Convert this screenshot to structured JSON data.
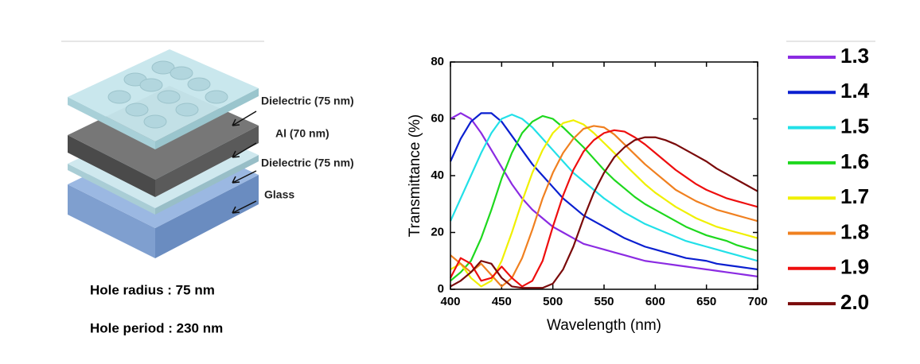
{
  "diagram": {
    "labels": [
      "Dielectric (75 nm)",
      "Al (70 nm)",
      "Dielectric (75 nm)",
      "Glass"
    ],
    "notes": [
      "Hole radius : 75 nm",
      "Hole period : 230 nm"
    ]
  },
  "chart_data": {
    "type": "line",
    "x_label": "Wavelength (nm)",
    "y_label": "Transmittance (%)",
    "xlim": [
      400,
      700
    ],
    "xticks": [
      400,
      450,
      500,
      550,
      600,
      650,
      700
    ],
    "ylim": [
      0,
      80
    ],
    "yticks": [
      0,
      20,
      40,
      60,
      80
    ],
    "x": [
      400,
      410,
      420,
      430,
      440,
      450,
      460,
      470,
      480,
      490,
      500,
      510,
      520,
      530,
      540,
      550,
      560,
      570,
      580,
      590,
      600,
      610,
      620,
      630,
      640,
      650,
      660,
      670,
      680,
      690,
      700
    ],
    "series": [
      {
        "name": "1.3",
        "color": "#8b2be2",
        "values": [
          60,
          62,
          60,
          55,
          49,
          43,
          37,
          32,
          28,
          25,
          22,
          20,
          18,
          16,
          15,
          14,
          13,
          12,
          11,
          10,
          9.5,
          9,
          8.5,
          8,
          7.5,
          7,
          6.5,
          6,
          5.5,
          5,
          4.5
        ]
      },
      {
        "name": "1.4",
        "color": "#0a1fd0",
        "values": [
          45,
          53,
          59,
          62,
          62,
          59,
          54,
          49,
          44,
          40,
          36,
          32,
          29,
          26,
          24,
          22,
          20,
          18,
          16.5,
          15,
          14,
          13,
          12,
          11,
          10.5,
          10,
          9,
          8.5,
          8,
          7.5,
          7
        ]
      },
      {
        "name": "1.5",
        "color": "#22e0e8",
        "values": [
          24,
          32,
          40,
          48,
          55,
          60,
          61.5,
          60,
          57,
          53,
          49,
          45,
          41,
          38,
          35,
          32,
          29.5,
          27,
          25,
          23,
          21.5,
          20,
          18.5,
          17,
          16,
          15,
          14,
          13,
          12,
          11,
          10
        ]
      },
      {
        "name": "1.6",
        "color": "#1ed81e",
        "values": [
          3,
          6,
          10,
          18,
          28,
          39,
          48,
          55,
          59,
          61,
          60,
          57,
          53.5,
          50,
          46,
          42,
          38.5,
          35.5,
          32.5,
          30,
          28,
          26,
          24,
          22,
          20.5,
          19,
          18,
          17,
          15.5,
          14.5,
          13.5
        ]
      },
      {
        "name": "1.7",
        "color": "#f0f000",
        "values": [
          7,
          9,
          4,
          1,
          3,
          10,
          20,
          31,
          41,
          49,
          55,
          58.5,
          59.5,
          58,
          55,
          51.5,
          48,
          44,
          40.5,
          37,
          34,
          31.5,
          29,
          27,
          25,
          23.5,
          22,
          21,
          20,
          19,
          18
        ]
      },
      {
        "name": "1.8",
        "color": "#f08020",
        "values": [
          12,
          9,
          6,
          9,
          5,
          1,
          4,
          11,
          21,
          32,
          41,
          48,
          53,
          56.5,
          57.5,
          57,
          54.5,
          51,
          47.5,
          44,
          41,
          38,
          35,
          33,
          31,
          29.5,
          28,
          27,
          26,
          25,
          24
        ]
      },
      {
        "name": "1.9",
        "color": "#ee0e0e",
        "values": [
          4,
          11,
          9,
          3,
          4,
          8,
          4,
          1,
          3,
          10,
          22,
          33,
          42,
          48.5,
          52.5,
          55,
          56,
          55.5,
          53.5,
          51,
          48,
          45,
          42,
          39.5,
          37,
          35,
          33.5,
          32,
          31,
          30,
          29
        ]
      },
      {
        "name": "2.0",
        "color": "#7a0a0a",
        "values": [
          1,
          3,
          6,
          10,
          9,
          4,
          1,
          0.5,
          0.5,
          0.5,
          2,
          7,
          15,
          25,
          34,
          41,
          46.5,
          50,
          52.5,
          53.5,
          53.5,
          52.5,
          51,
          49,
          47,
          45,
          42.5,
          40.5,
          38.5,
          36.5,
          34.5
        ]
      }
    ]
  }
}
